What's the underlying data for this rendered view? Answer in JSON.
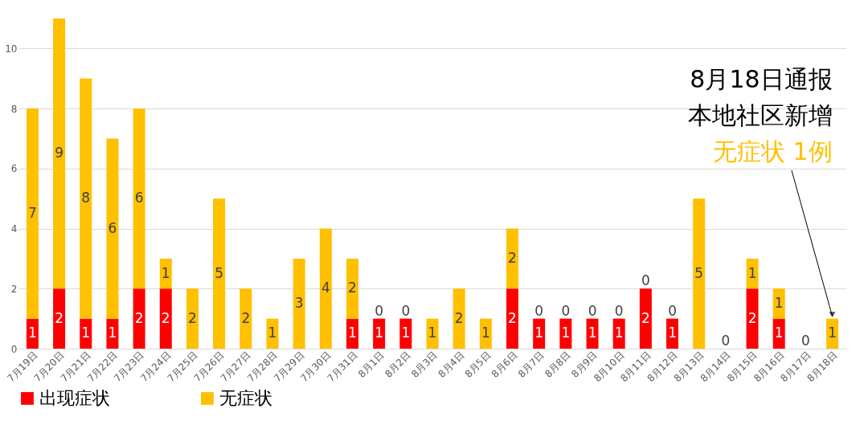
{
  "chart_data": {
    "type": "bar",
    "stacked": true,
    "categories": [
      "7月19日",
      "7月20日",
      "7月21日",
      "7月22日",
      "7月23日",
      "7月24日",
      "7月25日",
      "7月26日",
      "7月27日",
      "7月28日",
      "7月29日",
      "7月30日",
      "7月31日",
      "8月1日",
      "8月2日",
      "8月3日",
      "8月4日",
      "8月5日",
      "8月6日",
      "8月7日",
      "8月8日",
      "8月9日",
      "8月10日",
      "8月11日",
      "8月12日",
      "8月13日",
      "8月14日",
      "8月15日",
      "8月16日",
      "8月17日",
      "8月18日"
    ],
    "series": [
      {
        "name": "出现症状",
        "color": "#ff0000",
        "values": [
          1,
          2,
          1,
          1,
          2,
          2,
          0,
          0,
          0,
          0,
          0,
          0,
          1,
          1,
          1,
          0,
          0,
          0,
          2,
          1,
          1,
          1,
          1,
          2,
          1,
          0,
          0,
          2,
          1,
          0,
          0
        ],
        "value_labels": [
          "1",
          "2",
          "1",
          "1",
          "2",
          "2",
          null,
          null,
          null,
          null,
          null,
          null,
          "1",
          "1",
          "1",
          null,
          null,
          null,
          "2",
          "1",
          "1",
          "1",
          "1",
          "2",
          "1",
          null,
          null,
          "2",
          "1",
          null,
          null
        ]
      },
      {
        "name": "无症状",
        "color": "#ffc000",
        "values": [
          7,
          9,
          8,
          6,
          6,
          1,
          2,
          5,
          2,
          1,
          3,
          4,
          2,
          0,
          0,
          1,
          2,
          1,
          2,
          0,
          0,
          0,
          0,
          0,
          0,
          5,
          0,
          1,
          1,
          0,
          1
        ]
      }
    ],
    "ylim": [
      0,
      11
    ],
    "yticks": [
      0,
      2,
      4,
      6,
      8,
      10
    ],
    "grid": "y",
    "legend": "bottom",
    "data_labels": true,
    "annotations": [
      "8月18日通报",
      "本地社区新增",
      {
        "text": "无症状 1例",
        "x": "8月18日",
        "y": 1
      }
    ]
  }
}
